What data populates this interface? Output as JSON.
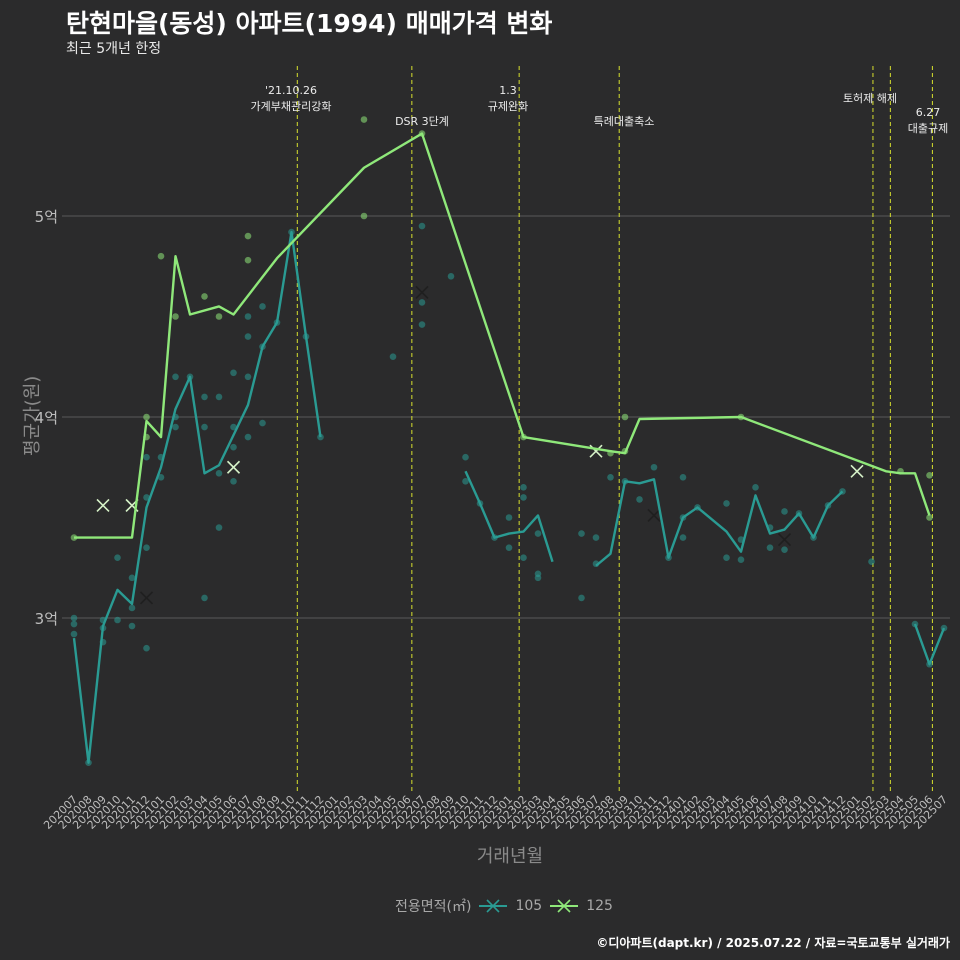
{
  "header": {
    "title": "탄현마을(동성) 아파트(1994) 매매가격 변화",
    "subtitle": "최근 5개년 한정"
  },
  "caption": "©디아파트(dapt.kr) / 2025.07.22 / 자료=국토교통부 실거래가",
  "legend": {
    "title": "전용면적(㎡)",
    "items": [
      "105",
      "125"
    ]
  },
  "colors": {
    "background": "#2b2b2c",
    "s105": "#2a9b93",
    "s125": "#8fe87a",
    "vline": "#d7e02e",
    "grid": "#5a5a5a"
  },
  "chart_data": {
    "type": "line",
    "title": "탄현마을(동성) 아파트(1994) 매매가격 변화",
    "subtitle": "최근 5개년 한정",
    "xlabel": "거래년월",
    "ylabel": "평균가(원)",
    "ylim": [
      2.15,
      5.6
    ],
    "yticks": [
      {
        "value": 3,
        "label": "3억"
      },
      {
        "value": 4,
        "label": "4억"
      },
      {
        "value": 5,
        "label": "5억"
      }
    ],
    "x": [
      "202007",
      "202008",
      "202009",
      "202010",
      "202011",
      "202012",
      "202101",
      "202102",
      "202103",
      "202104",
      "202105",
      "202106",
      "202107",
      "202108",
      "202109",
      "202110",
      "202111",
      "202112",
      "202201",
      "202202",
      "202203",
      "202204",
      "202205",
      "202206",
      "202207",
      "202208",
      "202209",
      "202210",
      "202211",
      "202212",
      "202301",
      "202302",
      "202303",
      "202304",
      "202305",
      "202306",
      "202307",
      "202308",
      "202309",
      "202310",
      "202311",
      "202312",
      "202401",
      "202402",
      "202403",
      "202404",
      "202405",
      "202406",
      "202407",
      "202408",
      "202409",
      "202410",
      "202411",
      "202412",
      "202501",
      "202502",
      "202503",
      "202504",
      "202505",
      "202506",
      "202507"
    ],
    "series": [
      {
        "name": "105",
        "color": "#2a9b93",
        "segments": [
          [
            [
              0,
              2.9
            ],
            [
              1,
              2.28
            ],
            [
              2,
              2.96
            ],
            [
              3,
              3.14
            ],
            [
              4,
              3.07
            ],
            [
              5,
              3.55
            ],
            [
              6,
              3.75
            ],
            [
              7,
              4.04
            ],
            [
              8,
              4.2
            ],
            [
              9,
              3.72
            ],
            [
              10,
              3.76
            ],
            [
              11,
              3.91
            ],
            [
              12,
              4.06
            ],
            [
              13,
              4.35
            ],
            [
              14,
              4.47
            ],
            [
              15,
              4.92
            ],
            [
              16,
              4.4
            ],
            [
              17,
              3.9
            ]
          ],
          [
            [
              27,
              3.73
            ],
            [
              28,
              3.57
            ],
            [
              29,
              3.4
            ],
            [
              30,
              3.42
            ],
            [
              31,
              3.43
            ],
            [
              32,
              3.51
            ],
            [
              33,
              3.28
            ]
          ],
          [
            [
              36,
              3.26
            ],
            [
              37,
              3.32
            ],
            [
              38,
              3.68
            ],
            [
              39,
              3.67
            ],
            [
              40,
              3.69
            ],
            [
              41,
              3.3
            ],
            [
              42,
              3.5
            ],
            [
              43,
              3.55
            ],
            [
              45,
              3.43
            ],
            [
              46,
              3.33
            ],
            [
              47,
              3.61
            ],
            [
              48,
              3.42
            ],
            [
              49,
              3.44
            ],
            [
              50,
              3.52
            ],
            [
              51,
              3.4
            ],
            [
              52,
              3.56
            ],
            [
              53,
              3.63
            ]
          ],
          [
            [
              58,
              2.97
            ],
            [
              59,
              2.77
            ],
            [
              60,
              2.95
            ]
          ]
        ]
      },
      {
        "name": "125",
        "color": "#8fe87a",
        "segments": [
          [
            [
              0,
              3.4
            ],
            [
              4,
              3.4
            ],
            [
              5,
              3.98
            ],
            [
              6,
              3.9
            ],
            [
              7,
              4.8
            ],
            [
              8,
              4.51
            ],
            [
              10,
              4.55
            ],
            [
              11,
              4.51
            ],
            [
              14,
              4.79
            ],
            [
              20,
              5.24
            ],
            [
              24,
              5.41
            ],
            [
              31,
              3.9
            ],
            [
              37,
              3.83
            ],
            [
              38,
              3.82
            ],
            [
              39,
              3.99
            ],
            [
              46,
              4.0
            ],
            [
              56,
              3.73
            ],
            [
              57,
              3.72
            ],
            [
              58,
              3.72
            ],
            [
              59,
              3.51
            ]
          ]
        ]
      }
    ],
    "scatter_105": [
      [
        0,
        3.0
      ],
      [
        0,
        2.97
      ],
      [
        0,
        2.92
      ],
      [
        1,
        2.28
      ],
      [
        2,
        2.88
      ],
      [
        2,
        2.95
      ],
      [
        2,
        2.99
      ],
      [
        3,
        3.3
      ],
      [
        3,
        2.99
      ],
      [
        4,
        3.05
      ],
      [
        4,
        2.96
      ],
      [
        4,
        3.2
      ],
      [
        5,
        2.85
      ],
      [
        5,
        3.35
      ],
      [
        5,
        3.6
      ],
      [
        5,
        3.8
      ],
      [
        6,
        3.7
      ],
      [
        6,
        3.8
      ],
      [
        7,
        4.0
      ],
      [
        7,
        3.95
      ],
      [
        7,
        4.2
      ],
      [
        8,
        4.2
      ],
      [
        9,
        3.1
      ],
      [
        9,
        3.95
      ],
      [
        9,
        4.1
      ],
      [
        10,
        3.45
      ],
      [
        10,
        3.72
      ],
      [
        10,
        4.1
      ],
      [
        11,
        3.68
      ],
      [
        11,
        3.85
      ],
      [
        11,
        3.95
      ],
      [
        11,
        4.22
      ],
      [
        12,
        3.9
      ],
      [
        12,
        4.2
      ],
      [
        12,
        4.4
      ],
      [
        12,
        4.5
      ],
      [
        13,
        3.97
      ],
      [
        13,
        4.55
      ],
      [
        13,
        4.35
      ],
      [
        14,
        4.47
      ],
      [
        15,
        4.92
      ],
      [
        16,
        4.4
      ],
      [
        17,
        3.9
      ],
      [
        22,
        4.3
      ],
      [
        24,
        4.95
      ],
      [
        24,
        4.57
      ],
      [
        24,
        4.46
      ],
      [
        26,
        4.7
      ],
      [
        27,
        3.8
      ],
      [
        27,
        3.68
      ],
      [
        28,
        3.57
      ],
      [
        29,
        3.4
      ],
      [
        30,
        3.35
      ],
      [
        30,
        3.5
      ],
      [
        31,
        3.65
      ],
      [
        31,
        3.6
      ],
      [
        31,
        3.3
      ],
      [
        32,
        3.22
      ],
      [
        32,
        3.2
      ],
      [
        32,
        3.42
      ],
      [
        35,
        3.42
      ],
      [
        35,
        3.1
      ],
      [
        36,
        3.27
      ],
      [
        36,
        3.4
      ],
      [
        37,
        3.7
      ],
      [
        38,
        3.68
      ],
      [
        39,
        3.59
      ],
      [
        40,
        3.75
      ],
      [
        41,
        3.3
      ],
      [
        42,
        3.7
      ],
      [
        42,
        3.5
      ],
      [
        42,
        3.4
      ],
      [
        43,
        3.55
      ],
      [
        45,
        3.3
      ],
      [
        45,
        3.57
      ],
      [
        46,
        3.29
      ],
      [
        46,
        3.39
      ],
      [
        47,
        3.65
      ],
      [
        48,
        3.45
      ],
      [
        48,
        3.35
      ],
      [
        49,
        3.53
      ],
      [
        49,
        3.34
      ],
      [
        50,
        3.52
      ],
      [
        51,
        3.4
      ],
      [
        52,
        3.56
      ],
      [
        53,
        3.63
      ],
      [
        55,
        3.28
      ],
      [
        58,
        2.97
      ],
      [
        59,
        2.77
      ],
      [
        60,
        2.95
      ]
    ],
    "scatter_125": [
      [
        0,
        3.4
      ],
      [
        5,
        4.0
      ],
      [
        5,
        3.9
      ],
      [
        6,
        4.8
      ],
      [
        7,
        4.5
      ],
      [
        9,
        4.6
      ],
      [
        10,
        4.5
      ],
      [
        12,
        4.9
      ],
      [
        12,
        4.78
      ],
      [
        20,
        5.48
      ],
      [
        20,
        5.0
      ],
      [
        24,
        5.41
      ],
      [
        31,
        3.9
      ],
      [
        37,
        3.82
      ],
      [
        38,
        3.83
      ],
      [
        38,
        4.0
      ],
      [
        46,
        4.0
      ],
      [
        57,
        3.73
      ],
      [
        59,
        3.71
      ],
      [
        59,
        3.5
      ]
    ],
    "cross_105": [
      [
        5,
        3.1
      ],
      [
        11,
        3.75
      ],
      [
        24,
        4.62
      ],
      [
        40,
        3.51
      ],
      [
        49,
        3.39
      ]
    ],
    "cross_125": [
      [
        2,
        3.56
      ],
      [
        4,
        3.56
      ],
      [
        11,
        3.75
      ],
      [
        36,
        3.83
      ],
      [
        54,
        3.73
      ]
    ],
    "events": [
      {
        "x": 15.4,
        "label": "'21.10.26\n가계부채관리강화"
      },
      {
        "x": 23.3,
        "label": "DSR 3단계"
      },
      {
        "x": 30.7,
        "label": "1.3\n규제완화"
      },
      {
        "x": 37.6,
        "label": "특례대출축소"
      },
      {
        "x": 55.1,
        "label": "토허제 해제"
      },
      {
        "x": 56.3,
        "label": ""
      },
      {
        "x": 59.2,
        "label": "6.27\n대출규제"
      }
    ]
  }
}
